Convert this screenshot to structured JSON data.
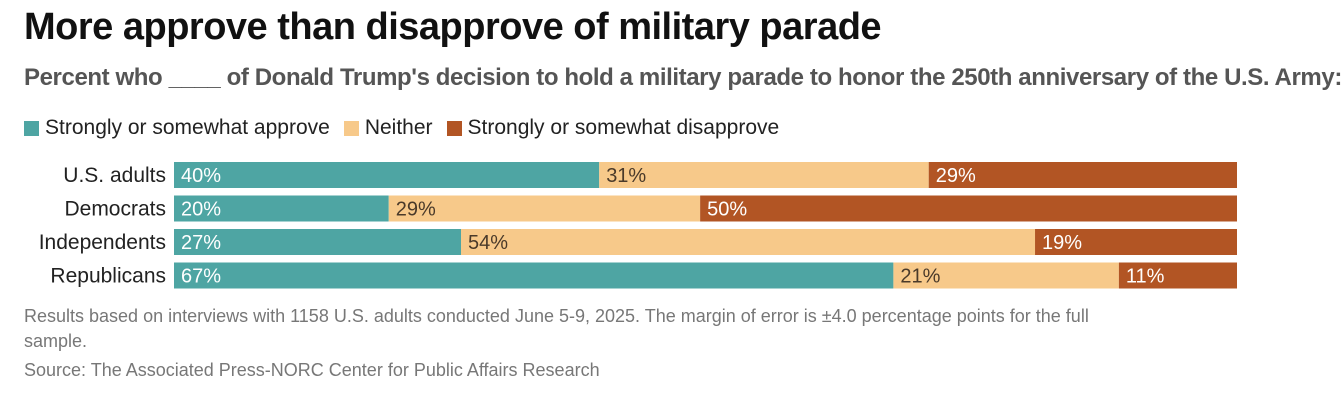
{
  "header": {
    "title": "More approve than disapprove of military parade",
    "subtitle": "Percent who ____ of Donald Trump's decision to hold a military parade to honor the 250th anniversary of the U.S. Army:"
  },
  "chart_data": {
    "type": "bar",
    "orientation": "horizontal",
    "stacked": true,
    "categories": [
      "U.S. adults",
      "Democrats",
      "Independents",
      "Republicans"
    ],
    "series": [
      {
        "name": "Strongly or somewhat approve",
        "color": "#4ea5a3",
        "values": [
          40,
          20,
          27,
          67
        ]
      },
      {
        "name": "Neither",
        "color": "#f7c98a",
        "values": [
          31,
          29,
          54,
          21
        ]
      },
      {
        "name": "Strongly or somewhat disapprove",
        "color": "#b25524",
        "values": [
          29,
          50,
          19,
          11
        ]
      }
    ],
    "value_suffix": "%",
    "legend_position": "top-left",
    "grid": false
  },
  "footer": {
    "note": "Results based on interviews with 1158 U.S. adults conducted June 5-9, 2025. The margin of error is ±4.0 percentage points for the full sample.",
    "source": "Source: The Associated Press-NORC Center for Public Affairs Research"
  }
}
